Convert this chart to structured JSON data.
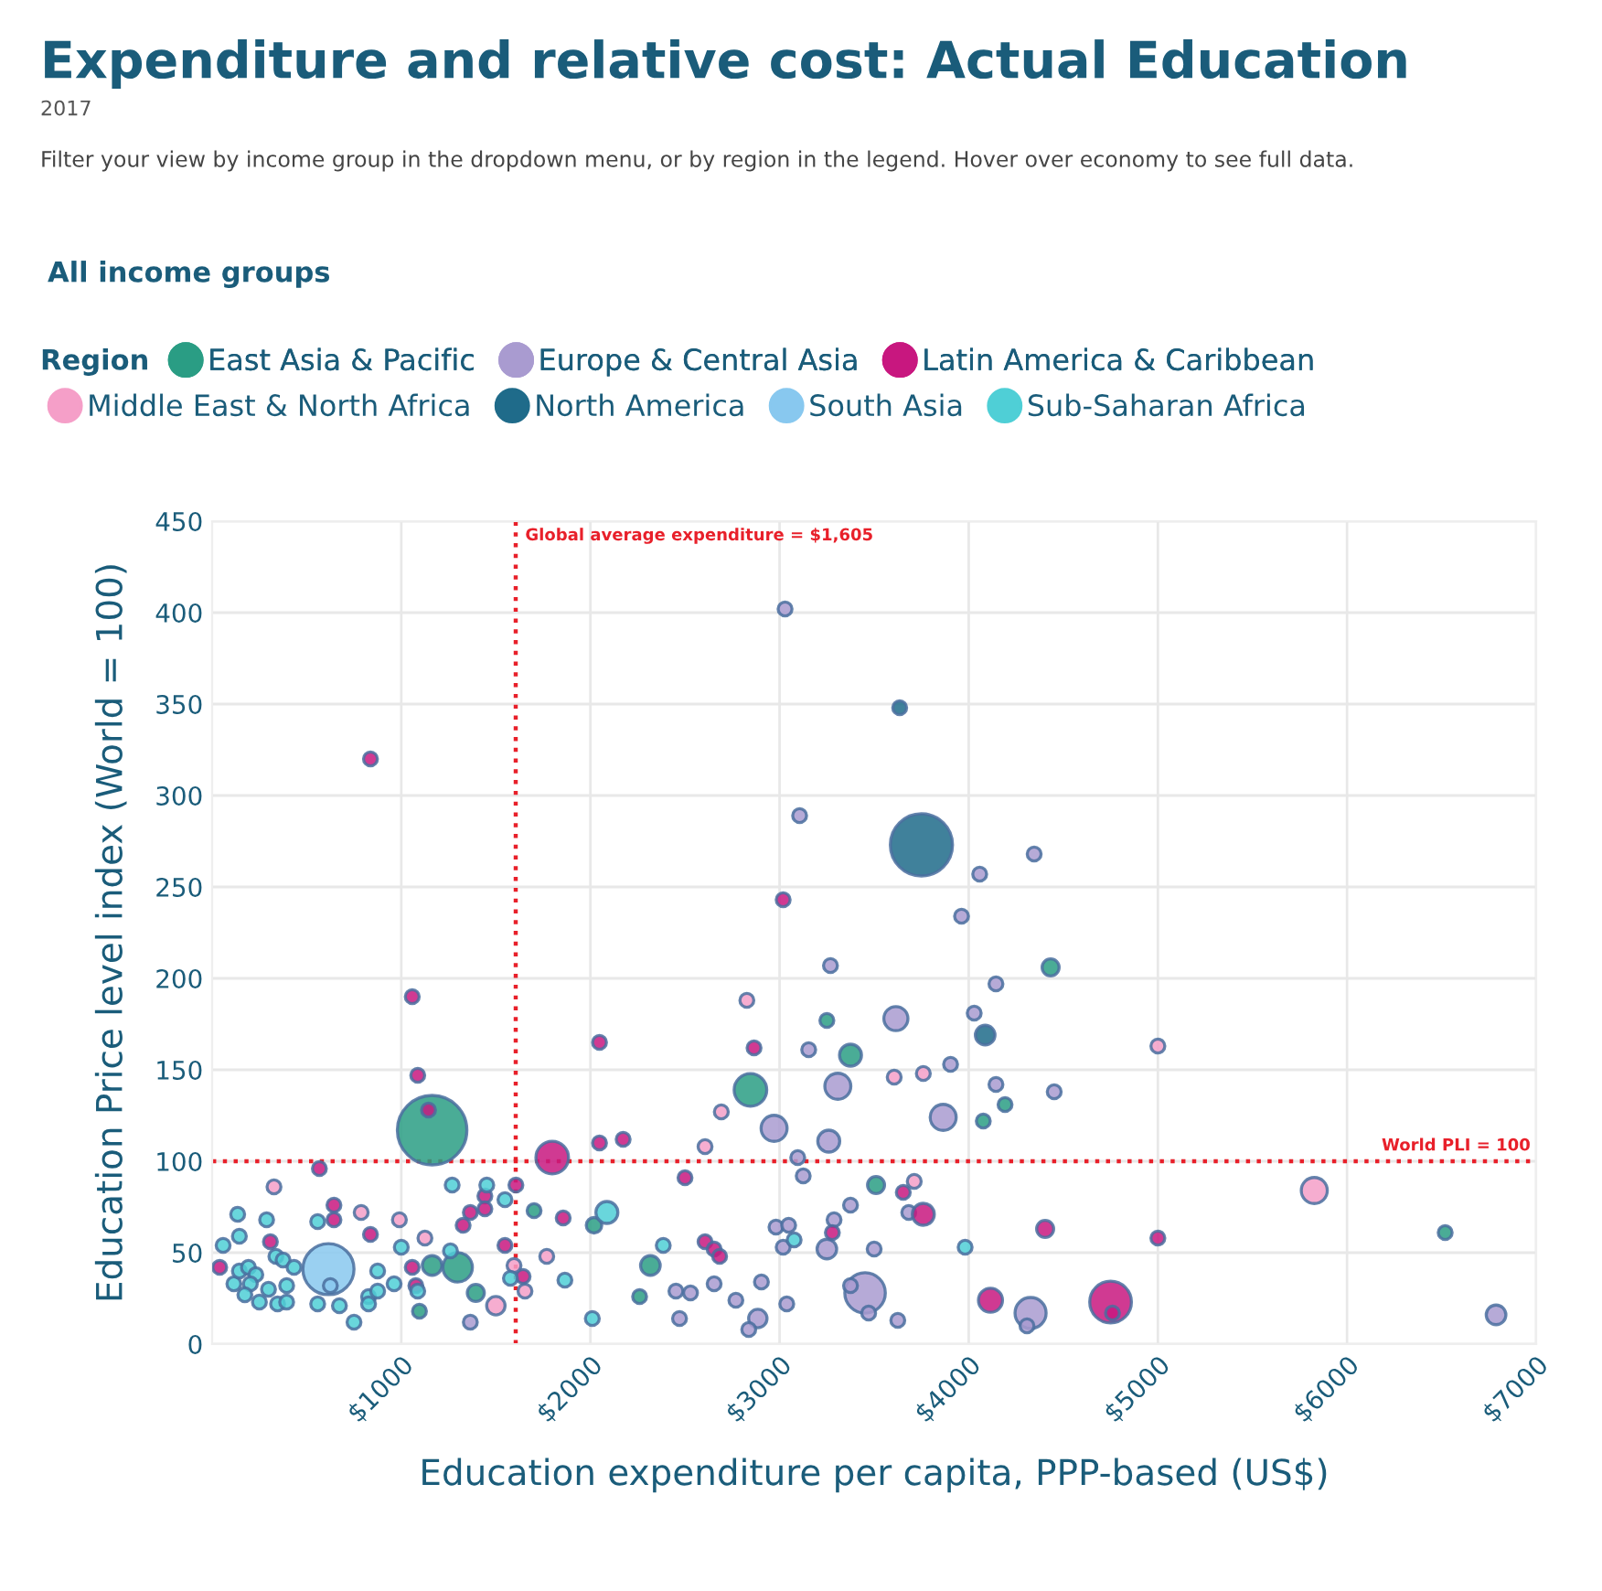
{
  "chart_data": {
    "type": "bubble",
    "title": "Expenditure and relative cost: Actual Education",
    "subtitle": "2017",
    "annotations": [
      "Filter your view by income group in the dropdown menu, or by region in the legend. Hover over economy to see full data.",
      "All income groups"
    ],
    "xlabel": "Education expenditure per capita, PPP-based (US$)",
    "ylabel": "Education Price level index (World = 100)",
    "legend_title": "Region",
    "legend": "top",
    "grid": true,
    "marker": "circle",
    "xlim": [
      0,
      7000
    ],
    "ylim": [
      0,
      450
    ],
    "xticks": [
      {
        "value": 1000,
        "label": "$1000"
      },
      {
        "value": 2000,
        "label": "$2000"
      },
      {
        "value": 3000,
        "label": "$3000"
      },
      {
        "value": 4000,
        "label": "$4000"
      },
      {
        "value": 5000,
        "label": "$5000"
      },
      {
        "value": 6000,
        "label": "$6000"
      },
      {
        "value": 7000,
        "label": "$7000"
      }
    ],
    "yticks": [
      0,
      50,
      100,
      150,
      200,
      250,
      300,
      350,
      400,
      450
    ],
    "ref_lines": [
      {
        "axis": "x",
        "value": 1605,
        "label": "Global average expenditure = $1,605",
        "color": "#e8202a",
        "line_style": "dotted"
      },
      {
        "axis": "y",
        "value": 100,
        "label": "World PLI = 100",
        "color": "#e8202a",
        "line_style": "dotted"
      }
    ],
    "series": [
      {
        "name": "East Asia & Pacific",
        "color": "#2a9d84",
        "x": [
          1163,
          1163,
          1298,
          1394,
          1096,
          1702,
          2019,
          2317,
          2260,
          2846,
          3375,
          3250,
          3510,
          4192,
          4077,
          4433,
          6519
        ],
        "values": [
          117,
          43,
          42,
          28,
          18,
          73,
          65,
          43,
          26,
          139,
          158,
          177,
          87,
          131,
          122,
          206,
          61
        ],
        "sizes": [
          1,
          0.08,
          0.18,
          0.06,
          0.04,
          0.04,
          0.05,
          0.08,
          0.04,
          0.22,
          0.1,
          0.04,
          0.06,
          0.04,
          0.04,
          0.06,
          0.04
        ]
      },
      {
        "name": "Europe & Central Asia",
        "color": "#a99bd0",
        "x": [
          1365,
          2452,
          2529,
          2471,
          2654,
          2769,
          2904,
          2885,
          2837,
          3038,
          3029,
          3106,
          3269,
          3154,
          3308,
          3904,
          4144,
          4452,
          3865,
          2971,
          3260,
          3096,
          3125,
          3375,
          3683,
          2981,
          3048,
          3019,
          3288,
          3250,
          3500,
          3452,
          3375,
          3471,
          3625,
          4327,
          4308,
          4346,
          4058,
          3962,
          4144,
          3615,
          4029,
          6788
        ],
        "values": [
          12,
          29,
          28,
          14,
          33,
          24,
          34,
          14,
          8,
          22,
          402,
          289,
          207,
          161,
          141,
          153,
          142,
          138,
          124,
          118,
          111,
          102,
          92,
          76,
          72,
          64,
          65,
          53,
          68,
          52,
          52,
          28,
          32,
          17,
          13,
          17,
          10,
          268,
          257,
          234,
          197,
          178,
          181,
          16
        ],
        "sizes": [
          0.04,
          0.04,
          0.04,
          0.04,
          0.04,
          0.04,
          0.04,
          0.07,
          0.04,
          0.04,
          0.04,
          0.04,
          0.04,
          0.04,
          0.14,
          0.04,
          0.04,
          0.04,
          0.14,
          0.14,
          0.1,
          0.04,
          0.04,
          0.04,
          0.04,
          0.04,
          0.04,
          0.04,
          0.04,
          0.08,
          0.04,
          0.34,
          0.04,
          0.04,
          0.04,
          0.2,
          0.04,
          0.04,
          0.04,
          0.04,
          0.04,
          0.12,
          0.04,
          0.08
        ]
      },
      {
        "name": "Latin America & Caribbean",
        "color": "#c8177f",
        "x": [
          837,
          1058,
          1087,
          1144,
          567,
          1798,
          2048,
          2048,
          2173,
          1606,
          1442,
          1442,
          1365,
          644,
          644,
          1327,
          837,
          308,
          1548,
          40,
          1058,
          1077,
          1644,
          1856,
          2500,
          2606,
          2654,
          2683,
          3019,
          2865,
          3654,
          3760,
          3279,
          4404,
          5000,
          4115,
          4750,
          4760
        ],
        "values": [
          320,
          190,
          147,
          128,
          96,
          102,
          165,
          110,
          112,
          87,
          81,
          74,
          72,
          76,
          68,
          65,
          60,
          56,
          54,
          42,
          42,
          32,
          37,
          69,
          91,
          56,
          52,
          48,
          243,
          162,
          83,
          71,
          61,
          63,
          58,
          24,
          23,
          17
        ],
        "sizes": [
          0.04,
          0.04,
          0.04,
          0.04,
          0.04,
          0.22,
          0.04,
          0.04,
          0.04,
          0.04,
          0.04,
          0.04,
          0.04,
          0.04,
          0.04,
          0.04,
          0.04,
          0.04,
          0.04,
          0.04,
          0.04,
          0.04,
          0.04,
          0.04,
          0.04,
          0.04,
          0.04,
          0.04,
          0.04,
          0.04,
          0.04,
          0.1,
          0.04,
          0.06,
          0.04,
          0.12,
          0.36,
          0.04
        ]
      },
      {
        "name": "Middle East & North Africa",
        "color": "#f59fc8",
        "x": [
          327,
          788,
          990,
          1125,
          1500,
          1596,
          1654,
          1769,
          2606,
          2692,
          2827,
          3606,
          3760,
          3712,
          5000,
          5827
        ],
        "values": [
          86,
          72,
          68,
          58,
          21,
          43,
          29,
          48,
          108,
          127,
          188,
          146,
          148,
          89,
          163,
          84
        ],
        "sizes": [
          0.04,
          0.04,
          0.04,
          0.04,
          0.07,
          0.04,
          0.04,
          0.04,
          0.04,
          0.04,
          0.04,
          0.04,
          0.04,
          0.04,
          0.04,
          0.14
        ]
      },
      {
        "name": "North America",
        "color": "#1f6b8a",
        "x": [
          3635,
          3750,
          4087
        ],
        "values": [
          348,
          273,
          169
        ],
        "sizes": [
          0.04,
          0.8,
          0.08
        ]
      },
      {
        "name": "South Asia",
        "color": "#88c8ef",
        "x": [
          615,
          625
        ],
        "values": [
          41,
          32
        ],
        "sizes": [
          0.54,
          0.04
        ]
      },
      {
        "name": "Sub-Saharan Africa",
        "color": "#4fcfd6",
        "x": [
          1269,
          1452,
          1548,
          558,
          135,
          288,
          144,
          58,
          1000,
          1260,
          2087,
          2385,
          115,
          144,
          192,
          231,
          202,
          173,
          250,
          298,
          346,
          394,
          337,
          375,
          433,
          394,
          558,
          673,
          750,
          827,
          827,
          875,
          875,
          962,
          1087,
          1577,
          1865,
          2010,
          3077,
          3981
        ],
        "values": [
          87,
          87,
          79,
          67,
          71,
          68,
          59,
          54,
          53,
          51,
          72,
          54,
          33,
          40,
          42,
          38,
          33,
          27,
          23,
          30,
          22,
          32,
          48,
          46,
          42,
          23,
          22,
          21,
          12,
          26,
          22,
          40,
          29,
          33,
          29,
          36,
          35,
          14,
          57,
          53
        ],
        "sizes": [
          0.04,
          0.04,
          0.04,
          0.04,
          0.04,
          0.04,
          0.04,
          0.04,
          0.04,
          0.04,
          0.1,
          0.04,
          0.04,
          0.04,
          0.04,
          0.04,
          0.04,
          0.04,
          0.04,
          0.04,
          0.04,
          0.04,
          0.04,
          0.04,
          0.04,
          0.04,
          0.04,
          0.04,
          0.04,
          0.04,
          0.04,
          0.04,
          0.04,
          0.04,
          0.04,
          0.04,
          0.04,
          0.04,
          0.04,
          0.04
        ]
      }
    ]
  }
}
